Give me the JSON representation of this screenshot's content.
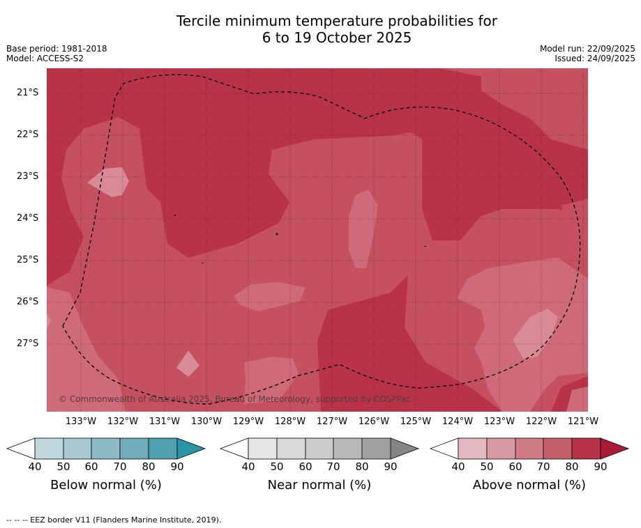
{
  "title_line1": "Tercile minimum temperature probabilities for",
  "title_line2": "6 to 19 October 2025",
  "base_period": "Base period: 1981-2018",
  "model": "Model: ACCESS-S2",
  "model_run": "Model run: 22/09/2025",
  "issued": "Issued: 24/09/2025",
  "copyright": "© Commonwealth of Australia 2025, Bureau of Meteorology, supported by COSPPac",
  "lat_labels": [
    "21°S",
    "22°S",
    "23°S",
    "24°S",
    "25°S",
    "26°S",
    "27°S"
  ],
  "lon_labels": [
    "133°W",
    "132°W",
    "131°W",
    "130°W",
    "129°W",
    "128°W",
    "127°W",
    "126°W",
    "125°W",
    "124°W",
    "123°W",
    "122°W",
    "121°W"
  ],
  "colorbars": [
    {
      "title": "Below normal (%)",
      "ticks": [
        "40",
        "50",
        "60",
        "70",
        "80",
        "90"
      ],
      "colors": [
        "#ffffff",
        "#bfd6dc",
        "#a6c9d0",
        "#8cbac5",
        "#70acb9",
        "#4fa1b0",
        "#2a93a6"
      ]
    },
    {
      "title": "Near normal (%)",
      "ticks": [
        "40",
        "50",
        "60",
        "70",
        "80",
        "90"
      ],
      "colors": [
        "#ffffff",
        "#e5e5e5",
        "#d9d9d9",
        "#cbcbcb",
        "#b8b8b8",
        "#a0a0a0",
        "#858585"
      ]
    },
    {
      "title": "Above normal (%)",
      "ticks": [
        "40",
        "50",
        "60",
        "70",
        "80",
        "90"
      ],
      "colors": [
        "#ffffff",
        "#e3b8bf",
        "#d99aa3",
        "#cf7c86",
        "#c45f6a",
        "#b93348",
        "#a81c38"
      ]
    }
  ],
  "footnote": "--  --  -- EEZ border V11 (Flanders Marine Institute, 2019)."
}
